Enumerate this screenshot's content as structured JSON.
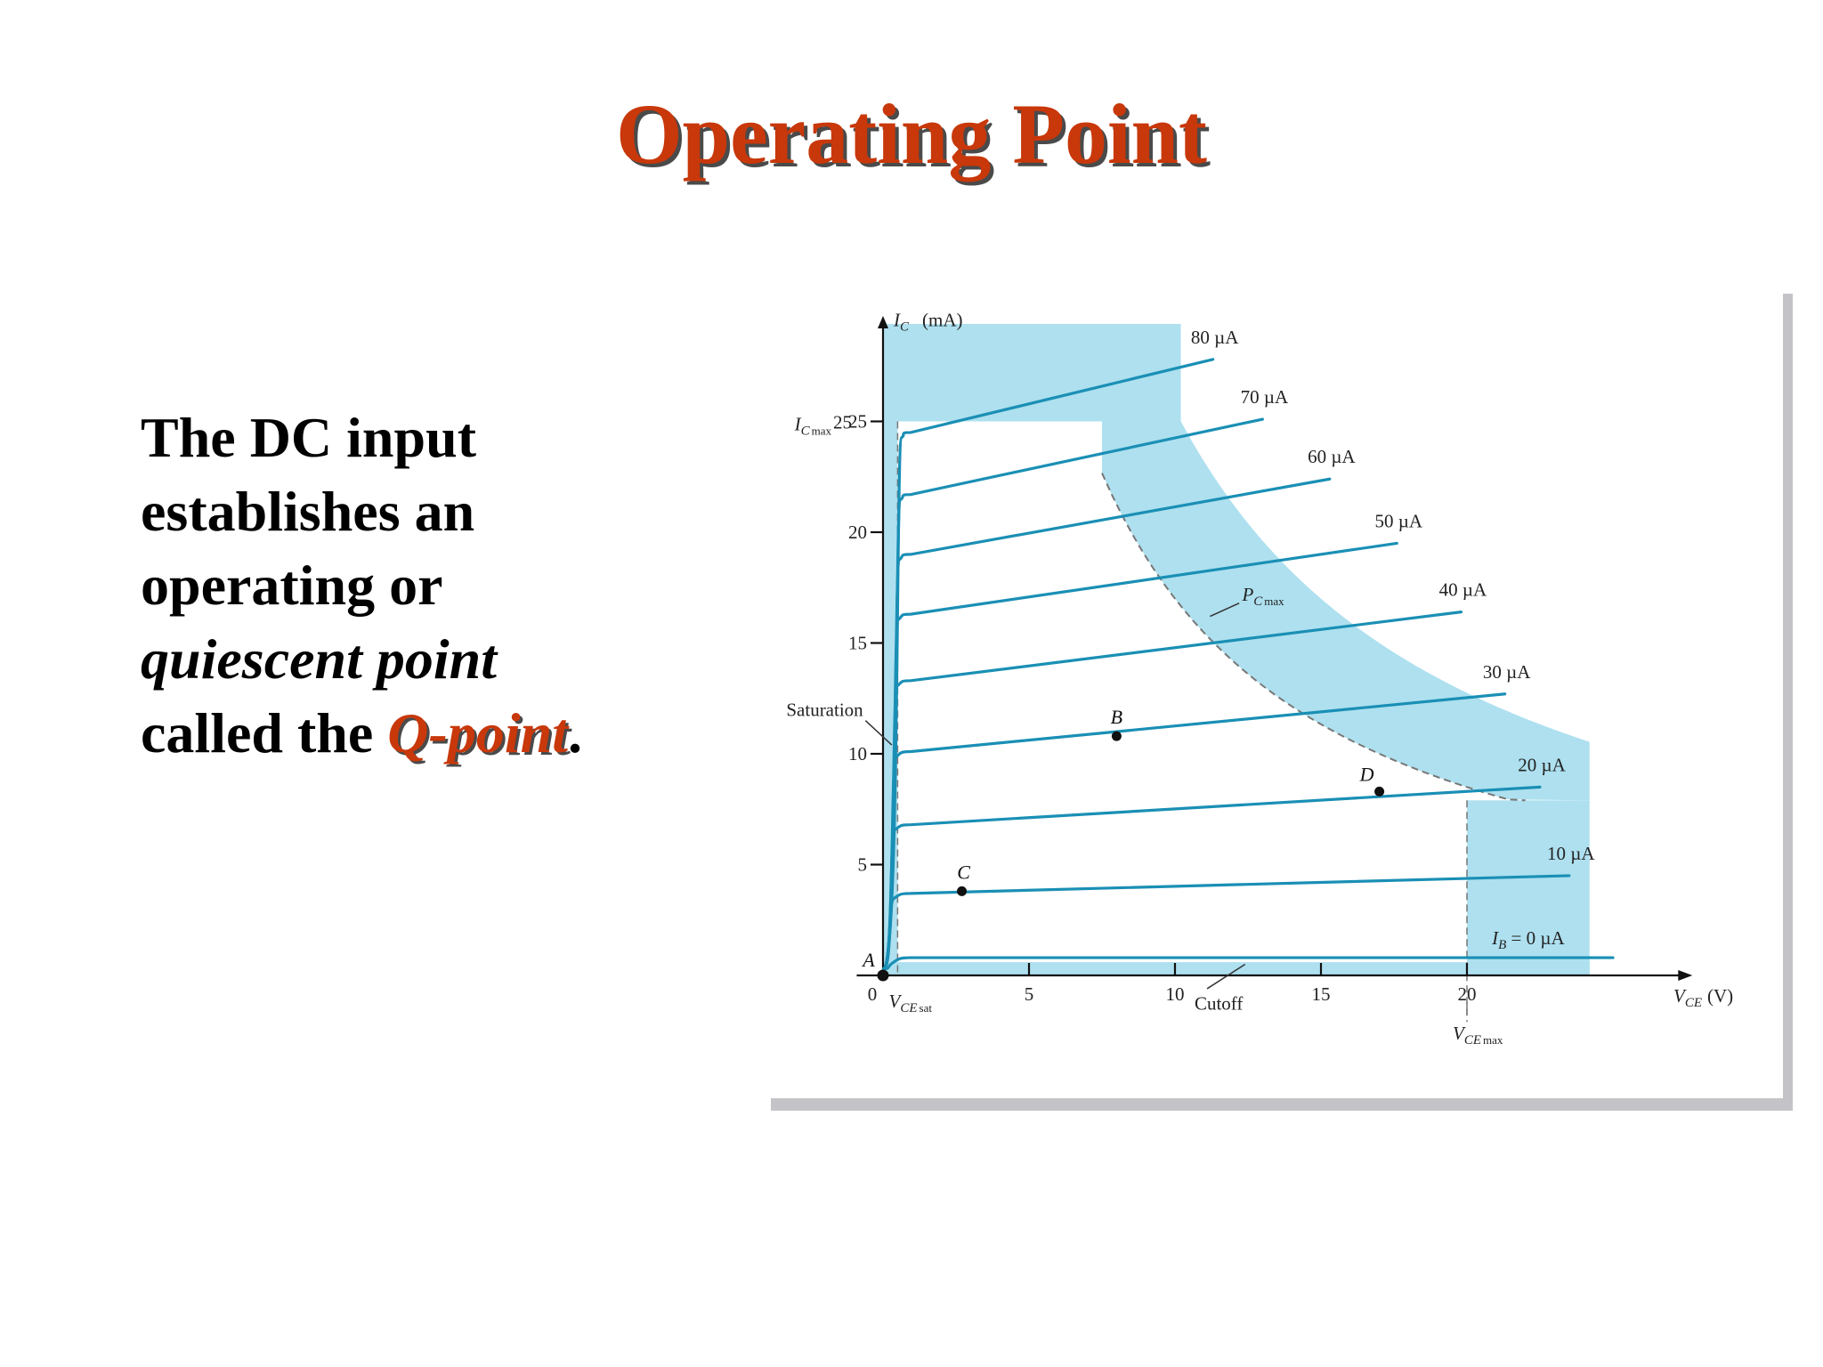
{
  "slide": {
    "title": "Operating Point",
    "body_lines": [
      "The DC input",
      "establishes an",
      "operating or"
    ],
    "body_italic": "quiescent point",
    "body_last_prefix": "called the ",
    "body_highlight": "Q-point",
    "body_last_suffix": "."
  },
  "colors": {
    "title": "#c8380a",
    "curve": "#1a8fb5",
    "region": "#aee0ef",
    "frame_shadow": "#c4c4c8"
  },
  "chart_data": {
    "type": "line",
    "ylabel": "I_C (mA)",
    "xlabel": "V_CE (V)",
    "xlim": [
      0,
      27
    ],
    "ylim": [
      0,
      29
    ],
    "x_ticks": [
      0,
      5,
      10,
      15,
      20
    ],
    "y_ticks": [
      0,
      5,
      10,
      15,
      20,
      25
    ],
    "series": [
      {
        "name": "80 µA",
        "knee": 24.5,
        "end": [
          11.3,
          27.8
        ]
      },
      {
        "name": "70 µA",
        "knee": 21.7,
        "end": [
          13.0,
          25.1
        ]
      },
      {
        "name": "60 µA",
        "knee": 19.0,
        "end": [
          15.3,
          22.4
        ]
      },
      {
        "name": "50 µA",
        "knee": 16.3,
        "end": [
          17.6,
          19.5
        ]
      },
      {
        "name": "40 µA",
        "knee": 13.3,
        "end": [
          19.8,
          16.4
        ]
      },
      {
        "name": "30 µA",
        "knee": 10.1,
        "end": [
          21.3,
          12.7
        ]
      },
      {
        "name": "20 µA",
        "knee": 6.8,
        "end": [
          22.5,
          8.5
        ]
      },
      {
        "name": "10 µA",
        "knee": 3.7,
        "end": [
          23.5,
          4.5
        ]
      },
      {
        "name": "I_B = 0 µA",
        "knee": 0.8,
        "end": [
          25.0,
          0.8
        ]
      }
    ],
    "points": [
      {
        "name": "A",
        "x": 0,
        "y": 0
      },
      {
        "name": "B",
        "x": 8,
        "y": 10.8
      },
      {
        "name": "C",
        "x": 2.7,
        "y": 3.8
      },
      {
        "name": "D",
        "x": 17,
        "y": 8.3
      }
    ],
    "ic_max": 25,
    "vce_max": 20,
    "annotations": {
      "ic_max": "I_C max",
      "vce_sat": "V_CE sat",
      "vce_max": "V_CE max",
      "pc_max": "P_C max",
      "saturation": "Saturation",
      "cutoff": "Cutoff"
    }
  }
}
